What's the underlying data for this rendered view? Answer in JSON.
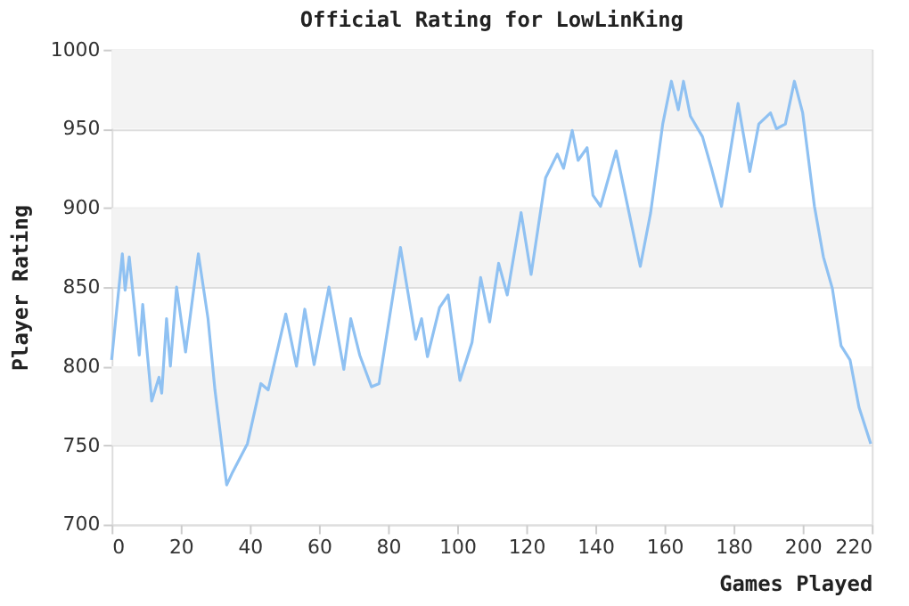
{
  "chart_data": {
    "type": "line",
    "title": "Official Rating for LowLinKing",
    "xlabel": "Games Played",
    "ylabel": "Player Rating",
    "x": [
      0,
      3.1,
      3.9,
      5.1,
      8,
      9,
      11.6,
      13.7,
      14.5,
      15.9,
      17,
      18.8,
      21.4,
      25.1,
      27.9,
      29.9,
      33.3,
      35,
      39.3,
      43.2,
      45.3,
      50.4,
      53.5,
      55.9,
      58.6,
      62.9,
      67.2,
      69.2,
      71.8,
      75.2,
      77.4,
      83.6,
      88,
      89.7,
      91.4,
      94.9,
      97.4,
      100.8,
      104.3,
      106.8,
      109.4,
      112,
      114.5,
      118.5,
      121.4,
      125.6,
      129,
      130.8,
      133.3,
      135,
      137.6,
      139.3,
      141.5,
      146,
      153,
      156,
      159.5,
      162,
      164,
      165.5,
      167.5,
      171,
      173.6,
      176.5,
      181.3,
      184.7,
      187.3,
      190.7,
      192.4,
      195,
      197.6,
      200,
      203.4,
      206,
      208.6,
      211.1,
      213.7,
      216.3,
      219.7
    ],
    "series": [
      {
        "color": "#8fc1f2",
        "values": [
          804,
          871,
          848,
          869,
          807,
          839,
          778,
          793,
          783,
          830,
          800,
          850,
          809,
          871,
          830,
          785,
          725,
          733,
          751,
          789,
          785,
          833,
          800,
          836,
          801,
          850,
          798,
          830,
          807,
          787,
          789,
          875,
          817,
          830,
          806,
          837,
          845,
          791,
          815,
          856,
          828,
          865,
          845,
          897,
          858,
          919,
          934,
          925,
          949,
          930,
          938,
          908,
          901,
          936,
          863,
          897,
          953,
          980,
          962,
          980,
          958,
          945,
          925,
          901,
          966,
          923,
          953,
          960,
          950,
          953,
          980,
          960,
          901,
          869,
          849,
          813,
          804,
          774,
          751
        ]
      }
    ],
    "xlim": [
      0,
      220
    ],
    "xticks": [
      0,
      20,
      40,
      60,
      80,
      100,
      120,
      140,
      160,
      180,
      200,
      220
    ],
    "ylim": [
      700,
      1000
    ],
    "yticks": [
      700,
      750,
      800,
      850,
      900,
      950,
      1000
    ],
    "grid": "y",
    "marker": "none",
    "line_style": "solid",
    "bands": [
      {
        "axis": "y",
        "from": 750,
        "to": 800,
        "color": "#f3f3f3"
      },
      {
        "axis": "y",
        "from": 850,
        "to": 900,
        "color": "#f3f3f3"
      },
      {
        "axis": "y",
        "from": 950,
        "to": 1000,
        "color": "#f3f3f3"
      }
    ]
  }
}
